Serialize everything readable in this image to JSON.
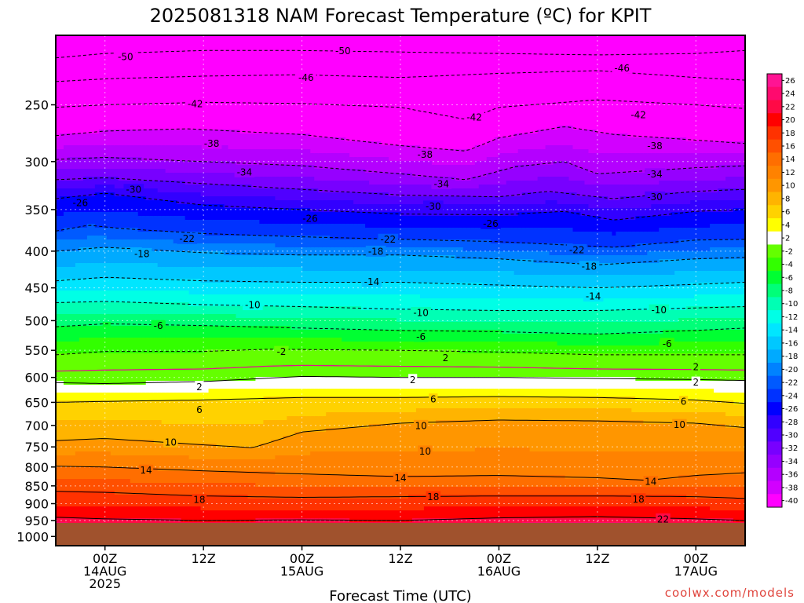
{
  "title": "2025081318 NAM Forecast Temperature (ºC) for KPIT",
  "credit": "coolwx.com/models",
  "chart_data": {
    "type": "heatmap",
    "title": "2025081318 NAM Forecast Temperature (ºC) for KPIT",
    "xlabel": "Forecast Time (UTC)",
    "ylabel": "",
    "y_scale": "log-pressure (inverted)",
    "y_ticks": [
      250,
      300,
      350,
      400,
      450,
      500,
      550,
      600,
      650,
      700,
      750,
      800,
      850,
      900,
      950,
      1000
    ],
    "y_range_hpa": [
      200,
      1030
    ],
    "x_range_hours": [
      -6,
      78
    ],
    "x_ticks": [
      {
        "hour": 0,
        "lines": [
          "00Z",
          "14AUG",
          "2025"
        ]
      },
      {
        "hour": 12,
        "lines": [
          "12Z"
        ]
      },
      {
        "hour": 24,
        "lines": [
          "00Z",
          "15AUG"
        ]
      },
      {
        "hour": 36,
        "lines": [
          "12Z"
        ]
      },
      {
        "hour": 48,
        "lines": [
          "00Z",
          "16AUG"
        ]
      },
      {
        "hour": 60,
        "lines": [
          "12Z"
        ]
      },
      {
        "hour": 72,
        "lines": [
          "00Z",
          "17AUG"
        ]
      }
    ],
    "ground_level_hpa": 975,
    "colorbar": {
      "levels": [
        26,
        24,
        22,
        20,
        18,
        16,
        14,
        12,
        10,
        8,
        6,
        4,
        2,
        -2,
        -4,
        -6,
        -8,
        -10,
        -12,
        -14,
        -16,
        -18,
        -20,
        -22,
        -24,
        -26,
        -28,
        -30,
        -32,
        -34,
        -36,
        -38,
        -40
      ],
      "colors": [
        "#ff1493",
        "#ff0a6e",
        "#ff0a46",
        "#ff0000",
        "#ff3200",
        "#ff5000",
        "#ff6e00",
        "#ff8200",
        "#ff9600",
        "#ffb400",
        "#ffd200",
        "#ffff00",
        "#ffffff",
        "#64ff00",
        "#32ff00",
        "#00ff32",
        "#00ff78",
        "#00ffb4",
        "#00ffe6",
        "#00e6ff",
        "#00c8ff",
        "#00aaff",
        "#0082ff",
        "#005aff",
        "#0032ff",
        "#0000ff",
        "#3200ff",
        "#5000ff",
        "#7800ff",
        "#9600ff",
        "#b400ff",
        "#d200ff",
        "#ff00ff"
      ]
    },
    "isotherms": [
      {
        "temp": -50,
        "label": "-50",
        "points": [
          [
            -6,
            215
          ],
          [
            0,
            212
          ],
          [
            12,
            210
          ],
          [
            24,
            210
          ],
          [
            36,
            211
          ],
          [
            48,
            212
          ],
          [
            60,
            213
          ],
          [
            72,
            212
          ],
          [
            78,
            210
          ]
        ]
      },
      {
        "temp": -46,
        "label": "-46",
        "points": [
          [
            -6,
            232
          ],
          [
            0,
            230
          ],
          [
            12,
            228
          ],
          [
            24,
            227
          ],
          [
            36,
            229
          ],
          [
            48,
            226
          ],
          [
            60,
            224
          ],
          [
            72,
            229
          ],
          [
            78,
            231
          ]
        ]
      },
      {
        "temp": -42,
        "label": "-42",
        "points": [
          [
            -6,
            252
          ],
          [
            0,
            250
          ],
          [
            12,
            248
          ],
          [
            24,
            249
          ],
          [
            36,
            252
          ],
          [
            44,
            262
          ],
          [
            48,
            252
          ],
          [
            60,
            246
          ],
          [
            72,
            250
          ],
          [
            78,
            253
          ]
        ]
      },
      {
        "temp": -38,
        "label": "-38",
        "points": [
          [
            -6,
            276
          ],
          [
            0,
            272
          ],
          [
            10,
            270
          ],
          [
            24,
            275
          ],
          [
            36,
            285
          ],
          [
            44,
            290
          ],
          [
            48,
            278
          ],
          [
            56,
            268
          ],
          [
            62,
            275
          ],
          [
            72,
            280
          ],
          [
            78,
            283
          ]
        ]
      },
      {
        "temp": -34,
        "label": "-34",
        "points": [
          [
            -6,
            298
          ],
          [
            0,
            296
          ],
          [
            12,
            300
          ],
          [
            24,
            304
          ],
          [
            36,
            312
          ],
          [
            44,
            318
          ],
          [
            50,
            305
          ],
          [
            56,
            300
          ],
          [
            60,
            312
          ],
          [
            72,
            306
          ],
          [
            78,
            304
          ]
        ]
      },
      {
        "temp": -30,
        "label": "-30",
        "points": [
          [
            -6,
            318
          ],
          [
            0,
            316
          ],
          [
            12,
            322
          ],
          [
            24,
            328
          ],
          [
            36,
            334
          ],
          [
            48,
            336
          ],
          [
            54,
            330
          ],
          [
            62,
            338
          ],
          [
            72,
            330
          ],
          [
            78,
            328
          ]
        ]
      },
      {
        "temp": -26,
        "label": "-26",
        "points": [
          [
            -6,
            338
          ],
          [
            0,
            332
          ],
          [
            12,
            345
          ],
          [
            24,
            350
          ],
          [
            36,
            355
          ],
          [
            48,
            356
          ],
          [
            56,
            352
          ],
          [
            62,
            362
          ],
          [
            72,
            352
          ],
          [
            78,
            350
          ]
        ]
      },
      {
        "temp": -22,
        "label": "-22",
        "points": [
          [
            -6,
            375
          ],
          [
            -2,
            368
          ],
          [
            2,
            372
          ],
          [
            12,
            378
          ],
          [
            24,
            382
          ],
          [
            36,
            385
          ],
          [
            48,
            388
          ],
          [
            56,
            392
          ],
          [
            62,
            395
          ],
          [
            72,
            386
          ],
          [
            78,
            385
          ]
        ]
      },
      {
        "temp": -18,
        "label": "-18",
        "points": [
          [
            -6,
            400
          ],
          [
            0,
            395
          ],
          [
            12,
            402
          ],
          [
            24,
            405
          ],
          [
            36,
            405
          ],
          [
            48,
            410
          ],
          [
            60,
            418
          ],
          [
            72,
            410
          ],
          [
            78,
            408
          ]
        ]
      },
      {
        "temp": -14,
        "label": "-14",
        "points": [
          [
            -6,
            440
          ],
          [
            0,
            435
          ],
          [
            12,
            440
          ],
          [
            24,
            442
          ],
          [
            36,
            442
          ],
          [
            48,
            446
          ],
          [
            60,
            450
          ],
          [
            72,
            445
          ],
          [
            78,
            442
          ]
        ]
      },
      {
        "temp": -10,
        "label": "-10",
        "points": [
          [
            -6,
            472
          ],
          [
            0,
            470
          ],
          [
            12,
            475
          ],
          [
            24,
            478
          ],
          [
            36,
            482
          ],
          [
            48,
            484
          ],
          [
            60,
            484
          ],
          [
            72,
            480
          ],
          [
            78,
            478
          ]
        ]
      },
      {
        "temp": -6,
        "label": "-6",
        "points": [
          [
            -6,
            510
          ],
          [
            0,
            505
          ],
          [
            12,
            508
          ],
          [
            24,
            512
          ],
          [
            36,
            516
          ],
          [
            48,
            518
          ],
          [
            60,
            522
          ],
          [
            72,
            516
          ],
          [
            78,
            512
          ]
        ]
      },
      {
        "temp": -2,
        "label": "-2",
        "points": [
          [
            -6,
            558
          ],
          [
            0,
            552
          ],
          [
            12,
            552
          ],
          [
            20,
            548
          ],
          [
            36,
            550
          ],
          [
            48,
            553
          ],
          [
            60,
            558
          ],
          [
            72,
            558
          ],
          [
            78,
            558
          ]
        ]
      },
      {
        "temp": 2,
        "label": "2",
        "points": [
          [
            -6,
            610
          ],
          [
            0,
            612
          ],
          [
            12,
            608
          ],
          [
            24,
            598
          ],
          [
            36,
            600
          ],
          [
            48,
            600
          ],
          [
            60,
            602
          ],
          [
            72,
            604
          ],
          [
            78,
            606
          ]
        ]
      },
      {
        "temp": 6,
        "label": "6",
        "points": [
          [
            -6,
            650
          ],
          [
            0,
            648
          ],
          [
            12,
            645
          ],
          [
            24,
            640
          ],
          [
            36,
            640
          ],
          [
            48,
            638
          ],
          [
            60,
            640
          ],
          [
            72,
            645
          ],
          [
            78,
            652
          ]
        ]
      },
      {
        "temp": 10,
        "label": "10",
        "points": [
          [
            -6,
            735
          ],
          [
            0,
            730
          ],
          [
            12,
            745
          ],
          [
            18,
            752
          ],
          [
            20,
            740
          ],
          [
            24,
            715
          ],
          [
            36,
            695
          ],
          [
            48,
            688
          ],
          [
            60,
            690
          ],
          [
            72,
            695
          ],
          [
            78,
            705
          ]
        ]
      },
      {
        "temp": 14,
        "label": "14",
        "points": [
          [
            -6,
            798
          ],
          [
            0,
            800
          ],
          [
            12,
            810
          ],
          [
            24,
            818
          ],
          [
            36,
            825
          ],
          [
            48,
            822
          ],
          [
            60,
            828
          ],
          [
            66,
            835
          ],
          [
            72,
            822
          ],
          [
            78,
            815
          ]
        ]
      },
      {
        "temp": 18,
        "label": "18",
        "points": [
          [
            -6,
            865
          ],
          [
            0,
            868
          ],
          [
            12,
            878
          ],
          [
            24,
            882
          ],
          [
            36,
            880
          ],
          [
            48,
            878
          ],
          [
            60,
            878
          ],
          [
            72,
            880
          ],
          [
            78,
            885
          ]
        ]
      },
      {
        "temp": 22,
        "label": "22",
        "points": [
          [
            -6,
            940
          ],
          [
            0,
            945
          ],
          [
            12,
            950
          ],
          [
            24,
            948
          ],
          [
            36,
            950
          ],
          [
            48,
            942
          ],
          [
            60,
            938
          ],
          [
            72,
            945
          ],
          [
            78,
            950
          ]
        ]
      }
    ],
    "contour_labels": [
      {
        "text": "-50",
        "x": 2.5,
        "p": 214
      },
      {
        "text": "-50",
        "x": 29,
        "p": 210
      },
      {
        "text": "-46",
        "x": 24.5,
        "p": 229
      },
      {
        "text": "-46",
        "x": 63,
        "p": 222
      },
      {
        "text": "-42",
        "x": 11,
        "p": 249
      },
      {
        "text": "-42",
        "x": 45,
        "p": 260
      },
      {
        "text": "-42",
        "x": 65,
        "p": 258
      },
      {
        "text": "-38",
        "x": 13,
        "p": 283
      },
      {
        "text": "-38",
        "x": 39,
        "p": 293
      },
      {
        "text": "-38",
        "x": 67,
        "p": 285
      },
      {
        "text": "-34",
        "x": 17,
        "p": 310
      },
      {
        "text": "-34",
        "x": 41,
        "p": 322
      },
      {
        "text": "-34",
        "x": 67,
        "p": 312
      },
      {
        "text": "-30",
        "x": 3.5,
        "p": 328
      },
      {
        "text": "-30",
        "x": 40,
        "p": 346
      },
      {
        "text": "-30",
        "x": 67,
        "p": 336
      },
      {
        "text": "-26",
        "x": -3,
        "p": 342
      },
      {
        "text": "-26",
        "x": 25,
        "p": 360
      },
      {
        "text": "-26",
        "x": 47,
        "p": 366
      },
      {
        "text": "-22",
        "x": 10,
        "p": 384
      },
      {
        "text": "-22",
        "x": 34.5,
        "p": 385
      },
      {
        "text": "-22",
        "x": 57.5,
        "p": 398
      },
      {
        "text": "-18",
        "x": 4.5,
        "p": 403
      },
      {
        "text": "-18",
        "x": 33,
        "p": 400
      },
      {
        "text": "-18",
        "x": 59,
        "p": 420
      },
      {
        "text": "-14",
        "x": 32.5,
        "p": 441
      },
      {
        "text": "-14",
        "x": 59.5,
        "p": 462
      },
      {
        "text": "-10",
        "x": 18,
        "p": 475
      },
      {
        "text": "-10",
        "x": 38.5,
        "p": 487
      },
      {
        "text": "-10",
        "x": 67.5,
        "p": 483
      },
      {
        "text": "-6",
        "x": 6.5,
        "p": 508
      },
      {
        "text": "-6",
        "x": 38.5,
        "p": 526
      },
      {
        "text": "-6",
        "x": 68.5,
        "p": 538
      },
      {
        "text": "-2",
        "x": 21.5,
        "p": 552
      },
      {
        "text": "2",
        "x": 41.5,
        "p": 563
      },
      {
        "text": "2",
        "x": 72,
        "p": 580
      },
      {
        "text": "2",
        "x": 11.5,
        "p": 618
      },
      {
        "text": "2",
        "x": 37.5,
        "p": 604
      },
      {
        "text": "2",
        "x": 72,
        "p": 609
      },
      {
        "text": "6",
        "x": 11.5,
        "p": 665
      },
      {
        "text": "6",
        "x": 40,
        "p": 643
      },
      {
        "text": "6",
        "x": 70.5,
        "p": 648
      },
      {
        "text": "10",
        "x": 8,
        "p": 738
      },
      {
        "text": "10",
        "x": 38.5,
        "p": 700
      },
      {
        "text": "10",
        "x": 39,
        "p": 760
      },
      {
        "text": "10",
        "x": 70,
        "p": 698
      },
      {
        "text": "14",
        "x": 5,
        "p": 808
      },
      {
        "text": "14",
        "x": 36,
        "p": 828
      },
      {
        "text": "14",
        "x": 66.5,
        "p": 838
      },
      {
        "text": "18",
        "x": 11.5,
        "p": 888
      },
      {
        "text": "18",
        "x": 40,
        "p": 880
      },
      {
        "text": "18",
        "x": 65,
        "p": 886
      },
      {
        "text": "22",
        "x": 68,
        "p": 945
      }
    ]
  }
}
